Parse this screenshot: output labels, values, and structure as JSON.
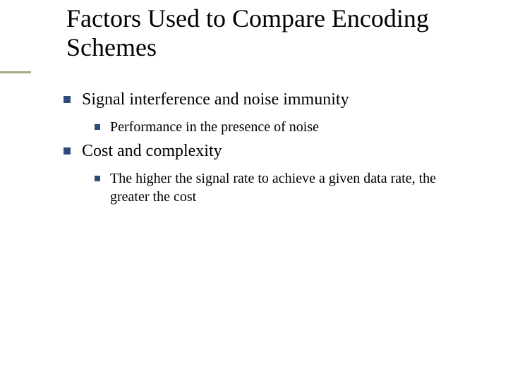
{
  "colors": {
    "bullet": "#2e4b7a",
    "accent": "#a7a97e",
    "text": "#000000",
    "background": "#ffffff"
  },
  "typography": {
    "title_fontsize_pt": 36,
    "lvl1_fontsize_pt": 24,
    "lvl2_fontsize_pt": 20,
    "font_family": "Times New Roman"
  },
  "title": "Factors Used to Compare Encoding Schemes",
  "items": [
    {
      "text": "Signal interference and noise immunity",
      "children": [
        {
          "text": "Performance in the presence of noise"
        }
      ]
    },
    {
      "text": "Cost and complexity",
      "children": [
        {
          "text": "The higher the signal rate to achieve a given data rate, the greater the cost"
        }
      ]
    }
  ]
}
